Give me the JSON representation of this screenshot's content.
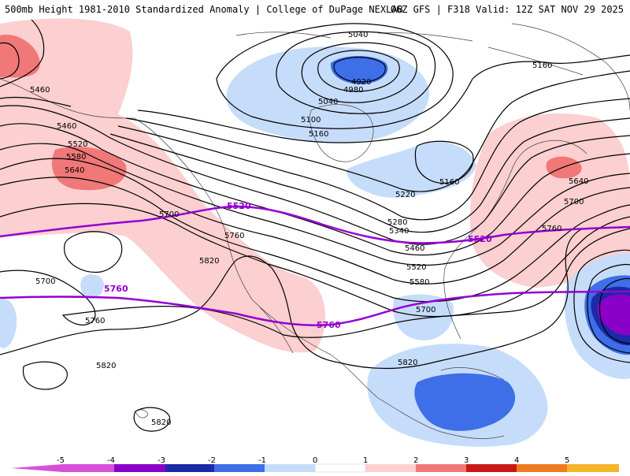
{
  "header": {
    "left_title": "500mb Height 1981-2010 Standardized Anomaly | College of DuPage NEXLAB",
    "right_title": "06Z GFS | F318 Valid: 12Z SAT NOV 29 2025"
  },
  "colors": {
    "neg5": "#d84fd8",
    "neg4": "#8a00c8",
    "neg3": "#1a2aa8",
    "neg2": "#3e6ee8",
    "neg1": "#c6dcfb",
    "pos1": "#fccfd0",
    "pos2": "#f07878",
    "pos3": "#c81818",
    "pos4": "#f07a20",
    "pos5": "#f6b428",
    "contour": "#000000",
    "highlight_contour": "#9400D3",
    "land_outline": "#444444"
  },
  "contour_labels": {
    "h5040_top": "5040",
    "h5040_mid": "5040",
    "h4920": "4920",
    "h4980": "4980",
    "h5100": "5100",
    "h5160_west": "5160",
    "h5160_east": "5160",
    "h5160_center": "5160",
    "h5220": "5220",
    "h5280": "5280",
    "h5340": "5340",
    "h5460_west_a": "5460",
    "h5460_west_b": "5460",
    "h5460_east": "5460",
    "h5520_west": "5520",
    "h5520_center": "5520",
    "h5580_west": "5580",
    "h5580_center": "5580",
    "h5640_west": "5640",
    "h5640_east": "5640",
    "h5700_pac": "5700",
    "h5700_mid": "5700",
    "h5700_west": "5700",
    "h5700_south": "5700",
    "h5760_a": "5760",
    "h5760_b": "5760",
    "h5760_c": "5760",
    "h5820_a": "5820",
    "h5820_b": "5820",
    "h5820_c": "5820",
    "h5820_d": "5820",
    "p5520_a": "5520",
    "p5520_b": "5520",
    "p5760_a": "5760",
    "p5760_b": "5760"
  },
  "colorbar": {
    "ticks": [
      "-5",
      "-4",
      "-3",
      "-2",
      "-1",
      "0",
      "1",
      "2",
      "3",
      "4",
      "5"
    ]
  }
}
